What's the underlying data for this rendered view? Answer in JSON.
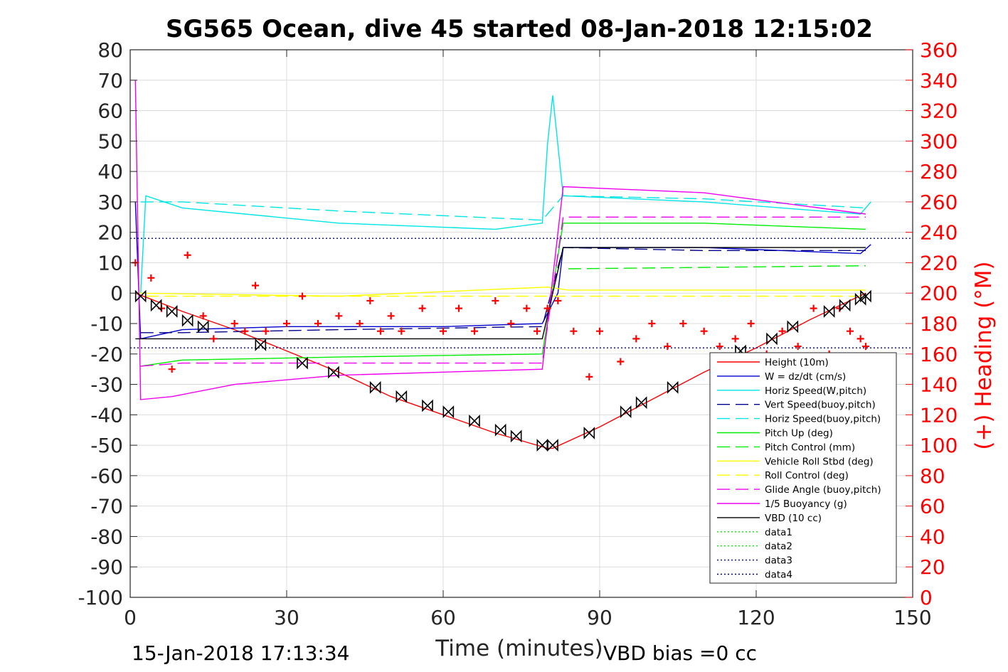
{
  "chart_data": {
    "type": "line",
    "title": "SG565 Ocean, dive 45 started 08-Jan-2018 12:15:02",
    "xlabel": "Time (minutes)",
    "ylabel_right": "(+) Heading (°M)",
    "xlim": [
      0,
      150
    ],
    "ylim_left": [
      -100,
      80
    ],
    "ylim_right": [
      0,
      360
    ],
    "x_ticks": [
      0,
      30,
      60,
      90,
      120,
      150
    ],
    "y_ticks_left": [
      80,
      70,
      60,
      50,
      40,
      30,
      20,
      10,
      0,
      -10,
      -20,
      -30,
      -40,
      -50,
      -60,
      -70,
      -80,
      -90,
      -100
    ],
    "y_ticks_right": [
      360,
      340,
      320,
      300,
      280,
      260,
      240,
      220,
      200,
      180,
      160,
      140,
      120,
      100,
      80,
      60,
      40,
      20,
      0
    ],
    "grid": true,
    "legend_position": "bottom-right",
    "colors": {
      "height": "#ff0000",
      "w": "#0000cd",
      "horiz_speed": "#00e5e5",
      "pitch": "#00ee00",
      "roll": "#ffff00",
      "glide": "#ee00ee",
      "buoyancy": "#ee00ee",
      "vbd": "#000000",
      "heading": "#ff0000"
    },
    "series": [
      {
        "name": "Height (10m)",
        "x": [
          1,
          10,
          20,
          30,
          40,
          50,
          60,
          70,
          80,
          81,
          90,
          100,
          110,
          120,
          130,
          141
        ],
        "y": [
          0,
          -6,
          -12,
          -19,
          -26,
          -34,
          -40,
          -46,
          -51,
          -51,
          -44,
          -35,
          -26,
          -18,
          -9,
          0
        ]
      },
      {
        "name": "W = dz/dt (cm/s)",
        "x": [
          1,
          2,
          10,
          30,
          60,
          79,
          82,
          83,
          110,
          140,
          142
        ],
        "y": [
          30,
          -15,
          -12,
          -11,
          -11,
          -10,
          0,
          15,
          15,
          13,
          16
        ]
      },
      {
        "name": "Horiz Speed(W,pitch)",
        "x": [
          2,
          3,
          10,
          40,
          70,
          79,
          80,
          81,
          83,
          110,
          140,
          142
        ],
        "y": [
          0,
          32,
          28,
          23,
          21,
          23,
          49,
          65,
          32,
          30,
          26,
          30
        ]
      },
      {
        "name": "Vert Speed(buoy,pitch)",
        "x": [
          2,
          10,
          40,
          79,
          83,
          110,
          141
        ],
        "y": [
          -13,
          -13,
          -12,
          -11,
          15,
          14,
          14
        ]
      },
      {
        "name": "Horiz Speed(buoy,pitch)",
        "x": [
          2,
          10,
          40,
          79,
          83,
          110,
          141
        ],
        "y": [
          30,
          30,
          27,
          24,
          32,
          31,
          28
        ]
      },
      {
        "name": "Pitch Up (deg)",
        "x": [
          2,
          10,
          40,
          79,
          83,
          110,
          141
        ],
        "y": [
          -24,
          -22,
          -21,
          -20,
          23,
          23,
          21
        ]
      },
      {
        "name": "Pitch Control (mm)",
        "x": [
          84,
          141
        ],
        "y": [
          8,
          9
        ]
      },
      {
        "name": "Vehicle Roll Stbd (deg)",
        "x": [
          1,
          40,
          80,
          84,
          141
        ],
        "y": [
          0,
          -1,
          2,
          1,
          1
        ]
      },
      {
        "name": "Roll Control (deg)",
        "x": [
          3,
          141
        ],
        "y": [
          -1,
          -1
        ]
      },
      {
        "name": "Glide Angle (buoy,pitch)",
        "x": [
          2,
          10,
          40,
          79,
          83,
          110,
          141
        ],
        "y": [
          -24,
          -23,
          -23,
          -23,
          25,
          25,
          25
        ]
      },
      {
        "name": "1/5 Buoyancy (g)",
        "x": [
          1,
          2,
          8,
          20,
          40,
          79,
          83,
          110,
          141
        ],
        "y": [
          70,
          -35,
          -34,
          -30,
          -27,
          -25,
          35,
          33,
          26
        ]
      },
      {
        "name": "VBD (10 cc)",
        "x": [
          1,
          2,
          79,
          83,
          141
        ],
        "y": [
          -15,
          -15,
          -15,
          15,
          15
        ]
      },
      {
        "name": "data1",
        "x": [],
        "y": []
      },
      {
        "name": "data2",
        "x": [],
        "y": []
      },
      {
        "name": "data3",
        "x": [
          0,
          150
        ],
        "y": [
          18,
          18
        ]
      },
      {
        "name": "data4",
        "x": [
          0,
          150
        ],
        "y": [
          -18,
          -18
        ]
      }
    ],
    "heading_series": {
      "x": [
        1,
        4,
        6,
        8,
        11,
        14,
        16,
        20,
        22,
        24,
        26,
        30,
        33,
        36,
        40,
        44,
        46,
        48,
        50,
        52,
        56,
        60,
        63,
        66,
        70,
        73,
        76,
        78,
        80,
        82,
        85,
        88,
        90,
        94,
        97,
        100,
        103,
        106,
        110,
        113,
        116,
        119,
        122,
        125,
        128,
        131,
        134,
        136,
        138,
        140,
        141
      ],
      "y": [
        220,
        210,
        190,
        150,
        225,
        185,
        170,
        180,
        175,
        205,
        175,
        180,
        198,
        180,
        185,
        180,
        195,
        175,
        185,
        175,
        190,
        175,
        190,
        175,
        195,
        180,
        190,
        175,
        190,
        195,
        175,
        145,
        175,
        155,
        170,
        180,
        165,
        180,
        175,
        165,
        170,
        180,
        160,
        175,
        165,
        190,
        160,
        190,
        175,
        170,
        165
      ]
    },
    "vbd_markers": [
      [
        2,
        -1
      ],
      [
        5,
        -4
      ],
      [
        8,
        -6
      ],
      [
        11,
        -9
      ],
      [
        14,
        -11
      ],
      [
        25,
        -17
      ],
      [
        33,
        -23
      ],
      [
        39,
        -26
      ],
      [
        47,
        -31
      ],
      [
        52,
        -34
      ],
      [
        57,
        -37
      ],
      [
        61,
        -39
      ],
      [
        66,
        -42
      ],
      [
        71,
        -45
      ],
      [
        74,
        -47
      ],
      [
        79,
        -50
      ],
      [
        81,
        -50
      ],
      [
        88,
        -46
      ],
      [
        95,
        -39
      ],
      [
        98,
        -36
      ],
      [
        104,
        -31
      ],
      [
        117,
        -19
      ],
      [
        123,
        -15
      ],
      [
        127,
        -11
      ],
      [
        134,
        -6
      ],
      [
        137,
        -4
      ],
      [
        140,
        -2
      ],
      [
        141,
        -1
      ]
    ],
    "footer_date": "15-Jan-2018 17:13:34",
    "footer_vbd": "VBD bias =0 cc"
  }
}
